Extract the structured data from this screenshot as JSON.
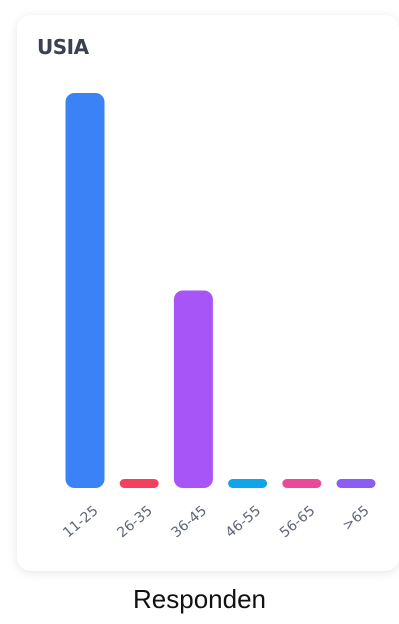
{
  "card": {
    "title": "USIA"
  },
  "caption": "Responden",
  "chart_data": {
    "type": "bar",
    "title": "USIA",
    "xlabel": "",
    "ylabel": "",
    "grid": false,
    "categories": [
      "11-25",
      "26-35",
      "36-45",
      "46-55",
      "56-65",
      ">65"
    ],
    "values": [
      100,
      2,
      50,
      2,
      2,
      2
    ],
    "ylim": [
      0,
      100
    ],
    "colors": [
      "#3b82f6",
      "#f43f5e",
      "#a855f7",
      "#0ea5e9",
      "#ec4899",
      "#8b5cf6"
    ]
  }
}
